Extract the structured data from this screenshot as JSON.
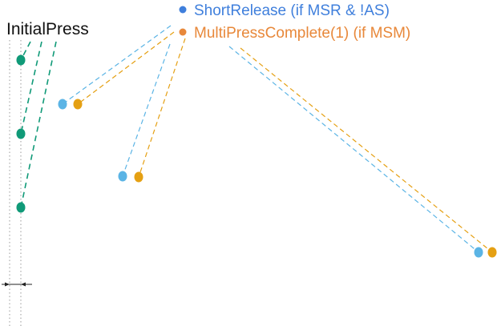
{
  "event_label": "InitialPress",
  "legend": [
    {
      "label": "ShortRelease (if MSR & !AS)",
      "color": "#3f7fdc"
    },
    {
      "label": "MultiPressComplete(1) (if MSM)",
      "color": "#e8883a"
    }
  ],
  "colors": {
    "initial_press": "#109a78",
    "short_release": "#5bb4e5",
    "multi_press_complete": "#e5a013",
    "guide": "#9a9a9a",
    "arrow": "#222222"
  }
}
